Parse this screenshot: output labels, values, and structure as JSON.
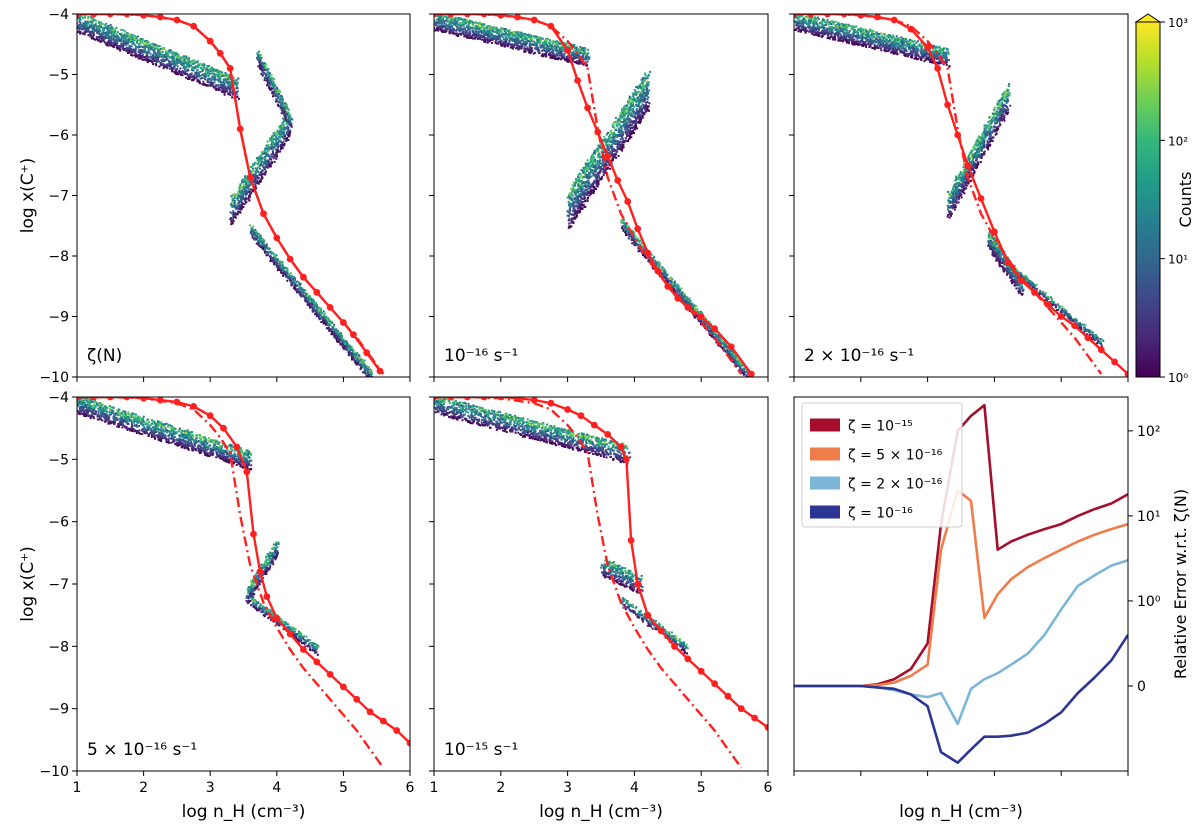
{
  "figure": {
    "colorbar": {
      "label": "Counts",
      "scale": "log",
      "range": [
        1,
        1000
      ],
      "ticks": [
        {
          "value": 1,
          "label": "10⁰"
        },
        {
          "value": 10,
          "label": "10¹"
        },
        {
          "value": 100,
          "label": "10²"
        },
        {
          "value": 1000,
          "label": "10³"
        }
      ],
      "colormap": "viridis",
      "extend": "max"
    }
  },
  "chart_data": [
    {
      "type": "scatter",
      "panel": "top-left",
      "annotation": "ζ(N)",
      "xlabel": "",
      "ylabel": "log x(C⁺)",
      "xlim": [
        1,
        6
      ],
      "ylim": [
        -10,
        -4
      ],
      "xticks": [
        1,
        2,
        3,
        4,
        5,
        6
      ],
      "yticks": [
        -10,
        -9,
        -8,
        -7,
        -6,
        -5,
        -4
      ],
      "show_xticklabels": false,
      "show_yticklabels": true,
      "series": [
        {
          "style": "solid",
          "color": "#ff2020",
          "markers": true,
          "x": [
            1.0,
            1.25,
            1.5,
            1.75,
            2.0,
            2.25,
            2.5,
            2.75,
            3.0,
            3.15,
            3.3,
            3.45,
            3.6,
            3.8,
            4.0,
            4.2,
            4.4,
            4.6,
            4.8,
            5.0,
            5.15,
            5.35,
            5.55
          ],
          "y": [
            -4.0,
            -4.0,
            -4.0,
            -4.0,
            -4.02,
            -4.05,
            -4.1,
            -4.2,
            -4.45,
            -4.65,
            -4.9,
            -5.9,
            -6.7,
            -7.3,
            -7.7,
            -8.05,
            -8.35,
            -8.6,
            -8.85,
            -9.1,
            -9.3,
            -9.6,
            -9.9
          ]
        },
        {
          "style": "dashdot",
          "color": "#ff2020",
          "markers": false,
          "x": [
            1.0,
            1.5,
            2.0,
            2.5,
            2.75,
            3.0,
            3.15,
            3.3,
            3.45,
            3.6,
            3.8,
            4.0,
            4.2,
            4.4,
            4.6,
            4.8,
            5.0,
            5.2,
            5.4,
            5.6
          ],
          "y": [
            -4.0,
            -4.0,
            -4.02,
            -4.1,
            -4.2,
            -4.45,
            -4.65,
            -4.9,
            -5.9,
            -6.7,
            -7.3,
            -7.7,
            -8.05,
            -8.35,
            -8.6,
            -8.85,
            -9.1,
            -9.35,
            -9.65,
            -9.95
          ]
        }
      ]
    },
    {
      "type": "scatter",
      "panel": "top-middle",
      "annotation": "10⁻¹⁶ s⁻¹",
      "xlabel": "",
      "ylabel": "",
      "xlim": [
        1,
        6
      ],
      "ylim": [
        -10,
        -4
      ],
      "xticks": [
        1,
        2,
        3,
        4,
        5,
        6
      ],
      "yticks": [
        -10,
        -9,
        -8,
        -7,
        -6,
        -5,
        -4
      ],
      "show_xticklabels": false,
      "show_yticklabels": false,
      "series": [
        {
          "style": "solid",
          "color": "#ff2020",
          "markers": true,
          "x": [
            1.0,
            1.25,
            1.5,
            1.75,
            2.0,
            2.25,
            2.5,
            2.75,
            3.0,
            3.15,
            3.3,
            3.45,
            3.6,
            3.75,
            3.9,
            4.05,
            4.2,
            4.35,
            4.5,
            4.65,
            4.8,
            5.0,
            5.2,
            5.45,
            5.75
          ],
          "y": [
            -4.0,
            -4.0,
            -4.0,
            -4.0,
            -4.02,
            -4.05,
            -4.1,
            -4.2,
            -4.6,
            -5.1,
            -5.55,
            -5.95,
            -6.35,
            -6.75,
            -7.1,
            -7.55,
            -7.95,
            -8.25,
            -8.5,
            -8.7,
            -8.85,
            -9.0,
            -9.2,
            -9.5,
            -9.95
          ]
        },
        {
          "style": "dashdot",
          "color": "#ff2020",
          "markers": false,
          "x": [
            1.0,
            1.5,
            2.0,
            2.5,
            2.75,
            3.0,
            3.15,
            3.3,
            3.45,
            3.6,
            3.8,
            4.0,
            4.2,
            4.4,
            4.6,
            4.8,
            5.0,
            5.2,
            5.4,
            5.6
          ],
          "y": [
            -4.0,
            -4.0,
            -4.02,
            -4.1,
            -4.2,
            -4.45,
            -4.65,
            -4.9,
            -5.9,
            -6.7,
            -7.3,
            -7.7,
            -8.05,
            -8.35,
            -8.6,
            -8.85,
            -9.1,
            -9.35,
            -9.65,
            -9.95
          ]
        }
      ]
    },
    {
      "type": "scatter",
      "panel": "top-right",
      "annotation": "2 × 10⁻¹⁶ s⁻¹",
      "xlabel": "",
      "ylabel": "",
      "xlim": [
        1,
        6
      ],
      "ylim": [
        -10,
        -4
      ],
      "xticks": [
        1,
        2,
        3,
        4,
        5,
        6
      ],
      "yticks": [
        -10,
        -9,
        -8,
        -7,
        -6,
        -5,
        -4
      ],
      "show_xticklabels": false,
      "show_yticklabels": false,
      "series": [
        {
          "style": "solid",
          "color": "#ff2020",
          "markers": true,
          "x": [
            1.0,
            1.25,
            1.5,
            1.75,
            2.0,
            2.25,
            2.5,
            2.75,
            3.0,
            3.15,
            3.3,
            3.45,
            3.6,
            3.8,
            4.0,
            4.2,
            4.4,
            4.6,
            4.8,
            5.0,
            5.2,
            5.4,
            5.6,
            5.8,
            6.0
          ],
          "y": [
            -4.0,
            -4.0,
            -4.0,
            -4.0,
            -4.02,
            -4.05,
            -4.1,
            -4.25,
            -4.55,
            -4.9,
            -5.5,
            -6.0,
            -6.5,
            -7.05,
            -7.6,
            -8.1,
            -8.4,
            -8.6,
            -8.8,
            -9.0,
            -9.15,
            -9.35,
            -9.55,
            -9.75,
            -9.95
          ]
        },
        {
          "style": "dashdot",
          "color": "#ff2020",
          "markers": false,
          "x": [
            1.0,
            1.5,
            2.0,
            2.5,
            2.75,
            3.0,
            3.15,
            3.3,
            3.45,
            3.6,
            3.8,
            4.0,
            4.2,
            4.4,
            4.6,
            4.8,
            5.0,
            5.2,
            5.4,
            5.6
          ],
          "y": [
            -4.0,
            -4.0,
            -4.02,
            -4.1,
            -4.2,
            -4.45,
            -4.65,
            -4.9,
            -5.9,
            -6.7,
            -7.3,
            -7.7,
            -8.05,
            -8.35,
            -8.6,
            -8.85,
            -9.1,
            -9.35,
            -9.65,
            -9.95
          ]
        }
      ]
    },
    {
      "type": "scatter",
      "panel": "bottom-left",
      "annotation": "5 × 10⁻¹⁶ s⁻¹",
      "xlabel": "log n_H (cm⁻³)",
      "ylabel": "log x(C⁺)",
      "xlim": [
        1,
        6
      ],
      "ylim": [
        -10,
        -4
      ],
      "xticks": [
        1,
        2,
        3,
        4,
        5,
        6
      ],
      "yticks": [
        -10,
        -9,
        -8,
        -7,
        -6,
        -5,
        -4
      ],
      "show_xticklabels": true,
      "show_yticklabels": true,
      "series": [
        {
          "style": "solid",
          "color": "#ff2020",
          "markers": true,
          "x": [
            1.0,
            1.25,
            1.5,
            1.75,
            2.0,
            2.25,
            2.5,
            2.75,
            3.0,
            3.2,
            3.4,
            3.55,
            3.65,
            3.75,
            3.85,
            4.0,
            4.2,
            4.4,
            4.6,
            4.8,
            5.0,
            5.2,
            5.4,
            5.6,
            5.8,
            6.0
          ],
          "y": [
            -4.0,
            -4.0,
            -4.0,
            -4.0,
            -4.02,
            -4.05,
            -4.08,
            -4.15,
            -4.3,
            -4.5,
            -4.8,
            -5.2,
            -6.2,
            -6.8,
            -7.2,
            -7.55,
            -7.8,
            -8.05,
            -8.25,
            -8.45,
            -8.65,
            -8.85,
            -9.05,
            -9.2,
            -9.35,
            -9.55
          ]
        },
        {
          "style": "dashdot",
          "color": "#ff2020",
          "markers": false,
          "x": [
            1.0,
            1.5,
            2.0,
            2.5,
            2.75,
            3.0,
            3.15,
            3.3,
            3.45,
            3.6,
            3.8,
            4.0,
            4.2,
            4.4,
            4.6,
            4.8,
            5.0,
            5.2,
            5.4,
            5.6
          ],
          "y": [
            -4.0,
            -4.0,
            -4.02,
            -4.1,
            -4.2,
            -4.45,
            -4.65,
            -4.9,
            -5.9,
            -6.7,
            -7.3,
            -7.7,
            -8.05,
            -8.35,
            -8.6,
            -8.85,
            -9.1,
            -9.35,
            -9.65,
            -9.95
          ]
        }
      ]
    },
    {
      "type": "scatter",
      "panel": "bottom-middle",
      "annotation": "10⁻¹⁵ s⁻¹",
      "xlabel": "log n_H (cm⁻³)",
      "ylabel": "",
      "xlim": [
        1,
        6
      ],
      "ylim": [
        -10,
        -4
      ],
      "xticks": [
        1,
        2,
        3,
        4,
        5,
        6
      ],
      "yticks": [
        -10,
        -9,
        -8,
        -7,
        -6,
        -5,
        -4
      ],
      "show_xticklabels": true,
      "show_yticklabels": false,
      "series": [
        {
          "style": "solid",
          "color": "#ff2020",
          "markers": true,
          "x": [
            1.0,
            1.25,
            1.5,
            1.75,
            2.0,
            2.25,
            2.5,
            2.75,
            3.0,
            3.2,
            3.4,
            3.6,
            3.8,
            3.88,
            3.95,
            4.05,
            4.2,
            4.4,
            4.6,
            4.8,
            5.0,
            5.2,
            5.4,
            5.6,
            5.8,
            6.0
          ],
          "y": [
            -4.0,
            -4.0,
            -4.0,
            -4.0,
            -4.0,
            -4.02,
            -4.05,
            -4.1,
            -4.2,
            -4.3,
            -4.45,
            -4.6,
            -4.8,
            -5.0,
            -6.3,
            -7.0,
            -7.5,
            -7.75,
            -8.0,
            -8.2,
            -8.4,
            -8.6,
            -8.8,
            -9.0,
            -9.15,
            -9.3
          ]
        },
        {
          "style": "dashdot",
          "color": "#ff2020",
          "markers": false,
          "x": [
            1.0,
            1.5,
            2.0,
            2.5,
            2.75,
            3.0,
            3.15,
            3.3,
            3.45,
            3.6,
            3.8,
            4.0,
            4.2,
            4.4,
            4.6,
            4.8,
            5.0,
            5.2,
            5.4,
            5.6
          ],
          "y": [
            -4.0,
            -4.0,
            -4.02,
            -4.1,
            -4.2,
            -4.45,
            -4.65,
            -4.9,
            -5.9,
            -6.7,
            -7.3,
            -7.7,
            -8.05,
            -8.35,
            -8.6,
            -8.85,
            -9.1,
            -9.35,
            -9.65,
            -9.95
          ]
        }
      ]
    },
    {
      "type": "line",
      "panel": "bottom-right",
      "xlabel": "log n_H (cm⁻³)",
      "ylabel": "Relative Error w.r.t. ζ(N)",
      "xlim": [
        1,
        6
      ],
      "ylim": [
        -0.8,
        250
      ],
      "yscale": "symlog",
      "xticks": [
        1,
        2,
        3,
        4,
        5,
        6
      ],
      "yticks": [
        {
          "value": 0,
          "label": "0"
        },
        {
          "value": 1,
          "label": "10⁰"
        },
        {
          "value": 10,
          "label": "10¹"
        },
        {
          "value": 100,
          "label": "10²"
        }
      ],
      "ytick_side": "right",
      "legend": "top-left",
      "x": [
        1.0,
        1.25,
        1.5,
        1.75,
        2.0,
        2.25,
        2.5,
        2.75,
        3.0,
        3.2,
        3.45,
        3.65,
        3.85,
        4.05,
        4.25,
        4.5,
        4.75,
        5.0,
        5.25,
        5.5,
        5.75,
        6.0
      ],
      "series": [
        {
          "name": "ζ = 10⁻¹⁵",
          "color": "#a50f2d",
          "values": [
            0,
            0,
            0,
            0,
            0,
            0.02,
            0.08,
            0.2,
            0.5,
            8,
            100,
            150,
            200,
            4,
            5,
            6,
            7,
            8,
            10,
            12,
            14,
            18
          ]
        },
        {
          "name": "ζ = 5 × 10⁻¹⁶",
          "color": "#f07c4a",
          "values": [
            0,
            0,
            0,
            0,
            0,
            0.01,
            0.04,
            0.12,
            0.25,
            4,
            20,
            15,
            0.8,
            1.2,
            1.8,
            2.5,
            3.2,
            4,
            5,
            6,
            7,
            8
          ]
        },
        {
          "name": "ζ = 2 × 10⁻¹⁶",
          "color": "#7bb6d9",
          "values": [
            0,
            0,
            0,
            0,
            0,
            -0.01,
            -0.03,
            -0.06,
            -0.08,
            -0.05,
            -0.3,
            -0.02,
            0.08,
            0.15,
            0.25,
            0.38,
            0.6,
            0.9,
            1.5,
            2.0,
            2.6,
            3.0
          ]
        },
        {
          "name": "ζ = 10⁻¹⁶",
          "color": "#2c3593",
          "values": [
            0,
            0,
            0,
            0,
            0,
            -0.01,
            -0.02,
            -0.06,
            -0.15,
            -0.58,
            -0.7,
            -0.55,
            -0.42,
            -0.42,
            -0.41,
            -0.38,
            -0.3,
            -0.2,
            -0.05,
            0.1,
            0.3,
            0.6
          ]
        }
      ]
    }
  ]
}
